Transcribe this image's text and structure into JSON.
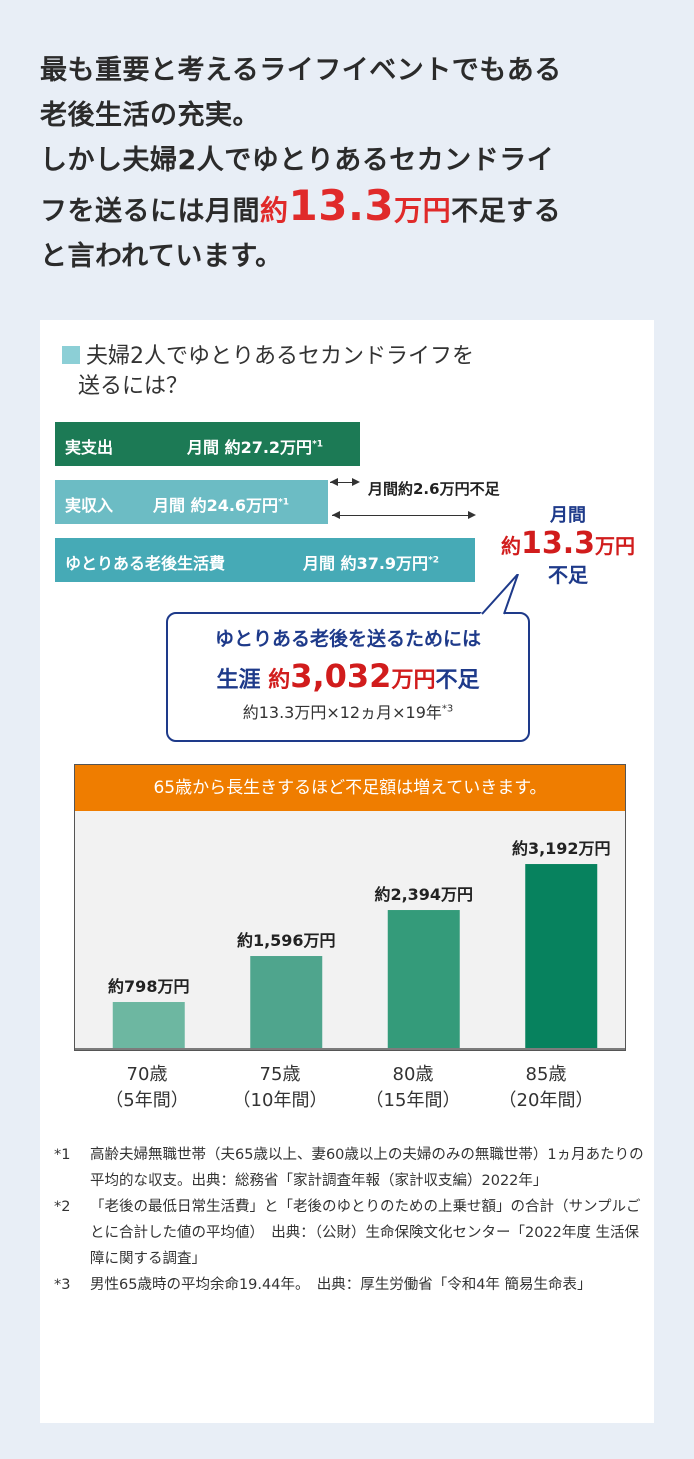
{
  "headline": {
    "line1": "最も重要と考えるライフイベントでもある",
    "line2": "老後生活の充実。",
    "line3": "しかし夫婦2人でゆとりあるセカンドライ",
    "line4_pre": "フを送るには月間",
    "line4_approx": "約",
    "line4_amount": "13.3",
    "line4_unit": "万円",
    "line4_post": "不足する",
    "line5": "と言われています。"
  },
  "section": {
    "title_line1": "夫婦2人でゆとりあるセカンドライフを",
    "title_line2": "送るには？"
  },
  "bars": {
    "expense": {
      "label": "実支出",
      "value": "月間 約27.2万円",
      "note": "*1"
    },
    "income": {
      "label": "実収入",
      "value": "月間 約24.6万円",
      "note": "*1"
    },
    "living": {
      "label": "ゆとりある老後生活費",
      "value": "月間 約37.9万円",
      "note": "*2"
    },
    "gap_note": "月間約2.6万円不足"
  },
  "shortfall": {
    "line1": "月間",
    "approx": "約",
    "amount": "13.3",
    "unit": "万円",
    "line3": "不足"
  },
  "bubble": {
    "line1": "ゆとりある老後を送るためには",
    "prefix": "生涯",
    "approx": "約",
    "amount": "3,032",
    "unit": "万円",
    "suffix": "不足",
    "formula": "約13.3万円×12ヵ月×19年",
    "formula_note": "*3"
  },
  "chart_header": "65歳から長生きするほど不足額は増えていきます。",
  "chart_data": {
    "type": "bar",
    "categories": [
      "70歳\n（5年間）",
      "75歳\n（10年間）",
      "80歳\n（15年間）",
      "85歳\n（20年間）"
    ],
    "cat_line1": [
      "70歳",
      "75歳",
      "80歳",
      "85歳"
    ],
    "cat_line2": [
      "（5年間）",
      "（10年間）",
      "（15年間）",
      "（20年間）"
    ],
    "values": [
      798,
      1596,
      2394,
      3192
    ],
    "data_labels": [
      "約798万円",
      "約1,596万円",
      "約2,394万円",
      "約3,192万円"
    ],
    "colors": [
      "#6db7a1",
      "#4fa58d",
      "#349b7a",
      "#07825e"
    ],
    "ylim": [
      0,
      3800
    ],
    "grid": false
  },
  "footnotes": [
    {
      "mark": "*1",
      "text": "高齢夫婦無職世帯（夫65歳以上、妻60歳以上の夫婦のみの無職世帯）1ヵ月あたりの平均的な収支。出典：総務省「家計調査年報（家計収支編）2022年」"
    },
    {
      "mark": "*2",
      "text": "「老後の最低日常生活費」と「老後のゆとりのための上乗せ額」の合計（サンプルごとに合計した値の平均値）　出典：（公財）生命保険文化センター「2022年度 生活保障に関する調査」"
    },
    {
      "mark": "*3",
      "text": "男性65歳時の平均余命19.44年。　出典：厚生労働省「令和4年 簡易生命表」"
    }
  ],
  "colors": {
    "background": "#e8eef6",
    "accent_red": "#d11c1c",
    "navy": "#1e3a8a",
    "orange": "#ef7d00"
  }
}
